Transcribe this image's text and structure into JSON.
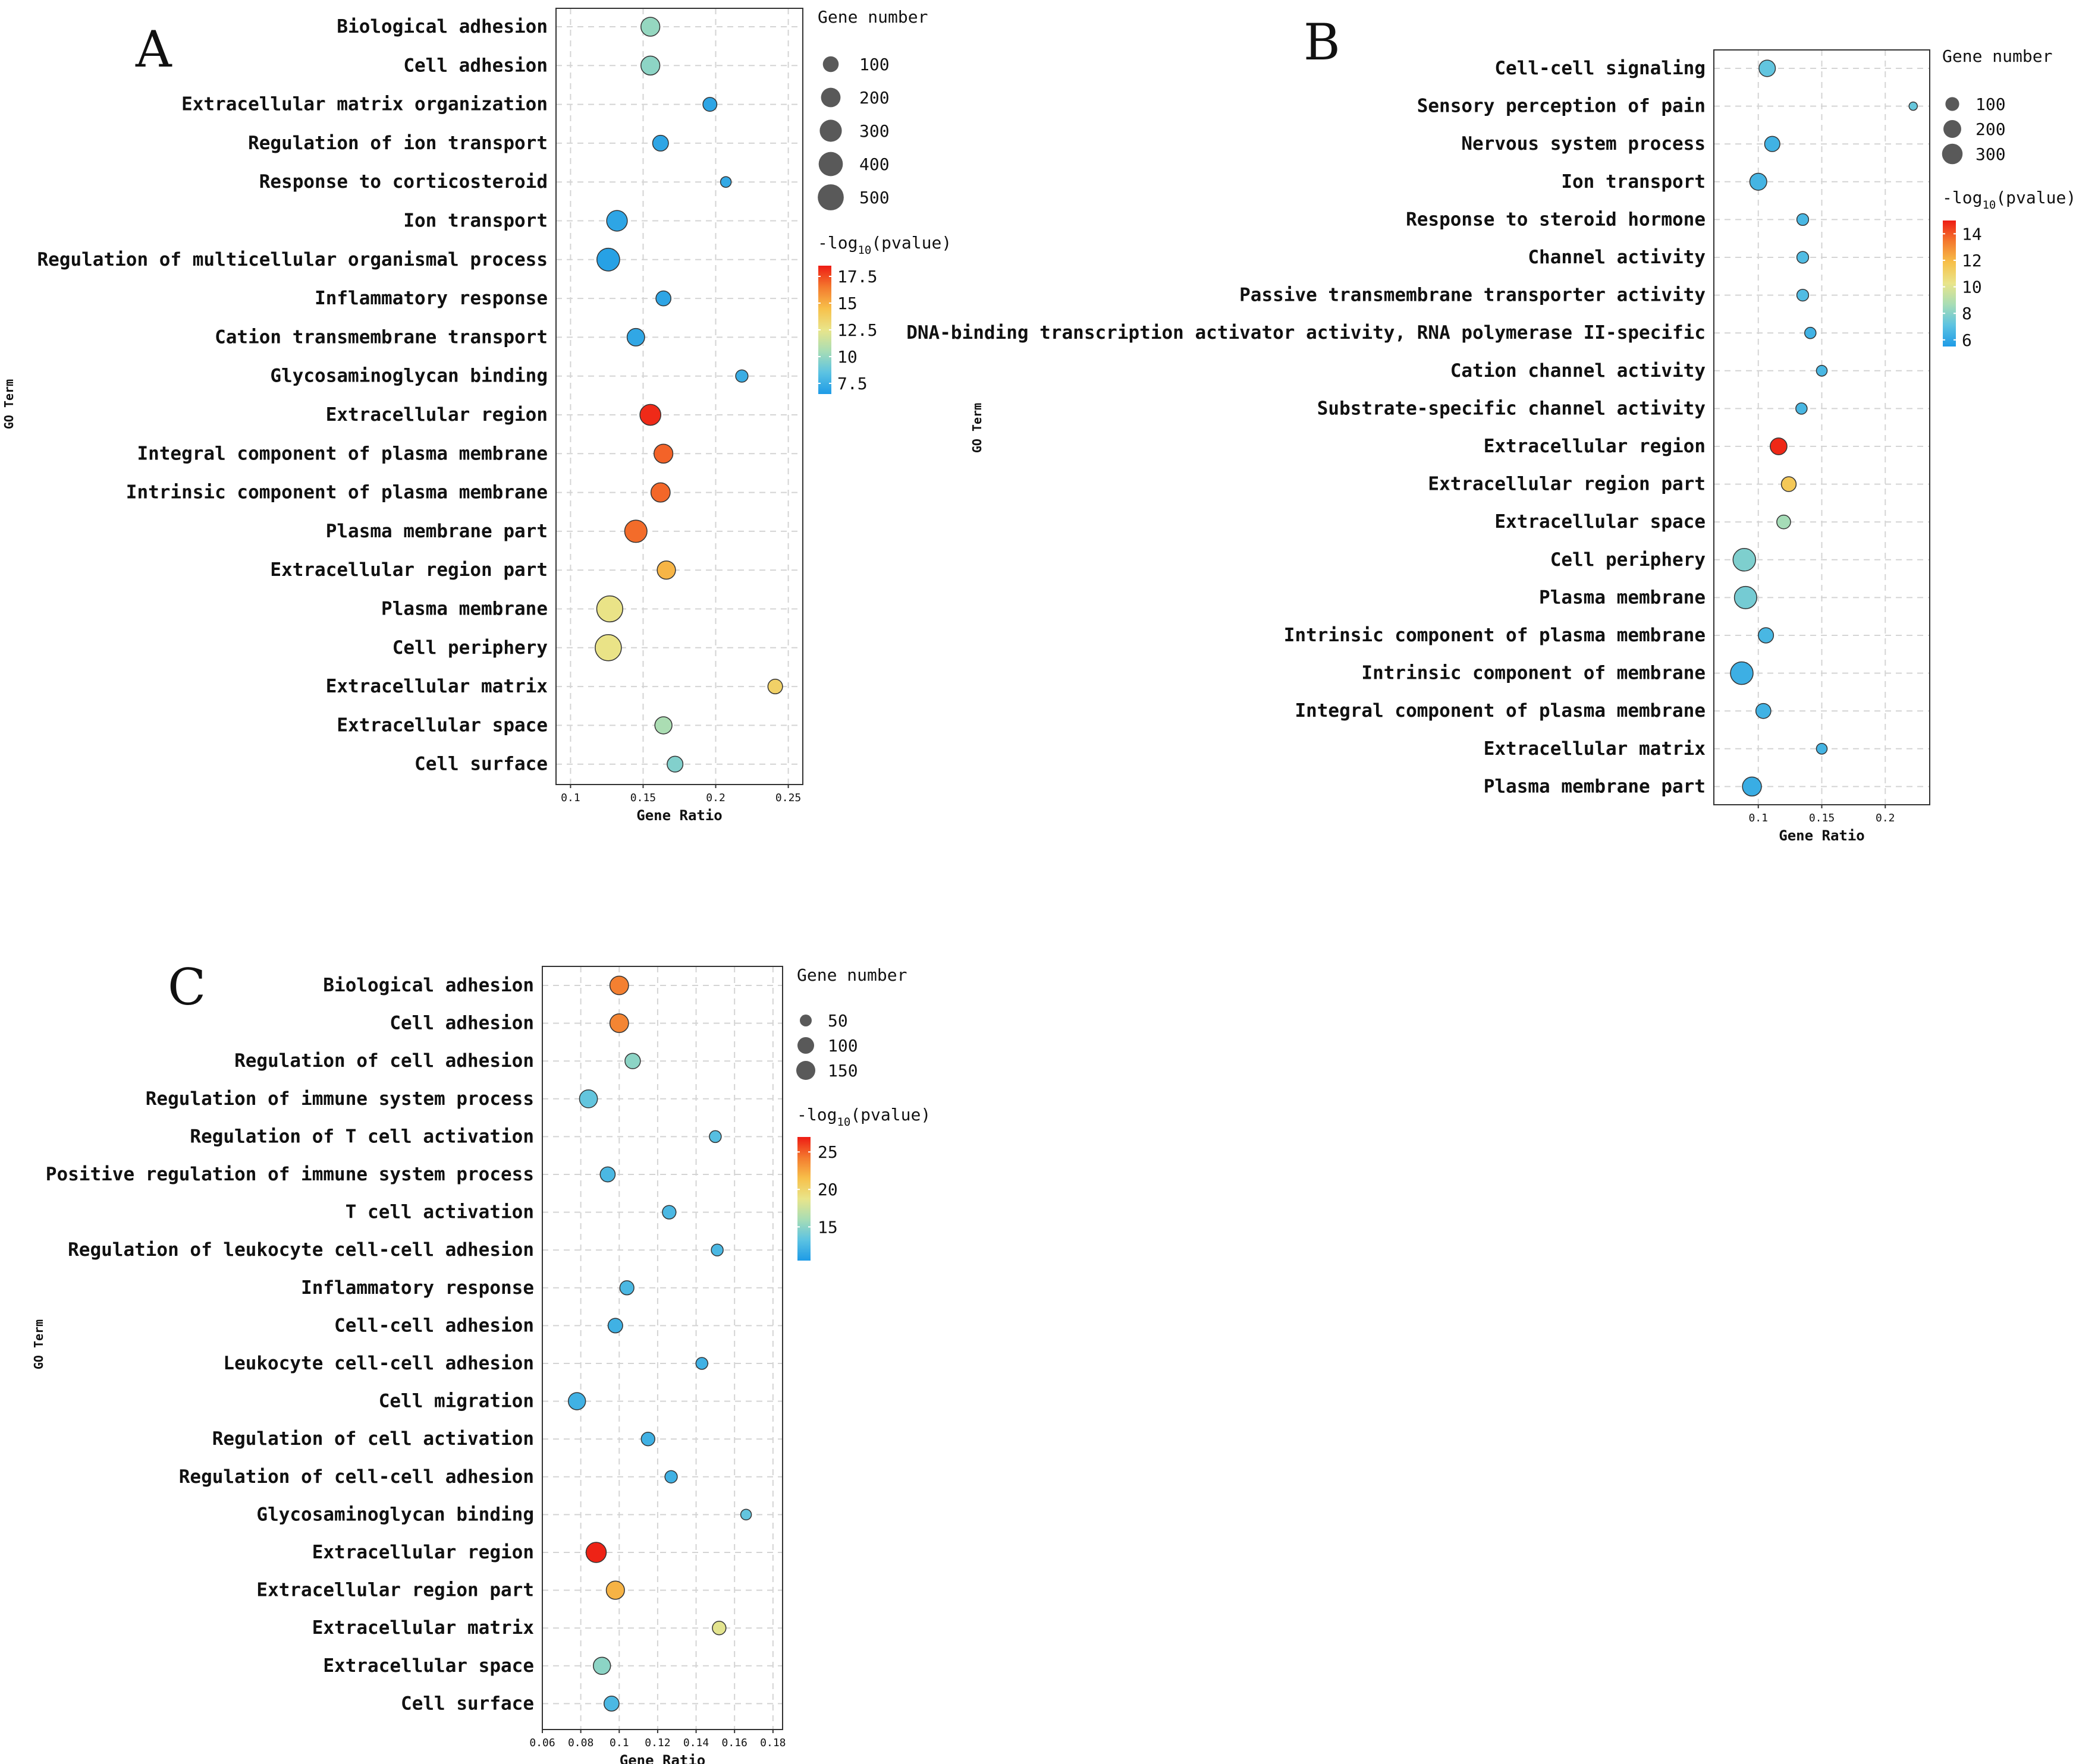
{
  "chart_data": [
    {
      "panel": "A",
      "type": "scatter",
      "xlabel": "Gene Ratio",
      "ylabel": "GO Term",
      "xlim": [
        0.09,
        0.26
      ],
      "xticks": [
        0.1,
        0.15,
        0.2,
        0.25
      ],
      "xtick_labels": [
        "0.1",
        "0.15",
        "0.2",
        "0.25"
      ],
      "grid": true,
      "size_legend": {
        "title": "Gene number",
        "values": [
          100,
          200,
          300,
          400,
          500
        ],
        "labels": [
          "100",
          "200",
          "300",
          "400",
          "500"
        ]
      },
      "color_legend": {
        "title_prefix": "-log",
        "title_sub": "10",
        "title_suffix": "(pvalue)",
        "min": 6.5,
        "max": 18.5,
        "ticks": [
          7.5,
          10,
          12.5,
          15,
          17.5
        ],
        "tick_labels": [
          "7.5",
          "10",
          "12.5",
          "15",
          "17.5"
        ]
      },
      "terms": [
        {
          "term": "Biological adhesion",
          "ratio": 0.155,
          "count": 180,
          "logp": 10.0
        },
        {
          "term": "Cell adhesion",
          "ratio": 0.155,
          "count": 180,
          "logp": 9.8
        },
        {
          "term": "Extracellular matrix organization",
          "ratio": 0.196,
          "count": 70,
          "logp": 7.0
        },
        {
          "term": "Regulation of ion transport",
          "ratio": 0.162,
          "count": 100,
          "logp": 7.0
        },
        {
          "term": "Response to corticosteroid",
          "ratio": 0.207,
          "count": 50,
          "logp": 7.2
        },
        {
          "term": "Ion transport",
          "ratio": 0.132,
          "count": 240,
          "logp": 7.0
        },
        {
          "term": "Regulation of multicellular organismal process",
          "ratio": 0.126,
          "count": 330,
          "logp": 6.8
        },
        {
          "term": "Inflammatory response",
          "ratio": 0.164,
          "count": 85,
          "logp": 7.0
        },
        {
          "term": "Cation transmembrane transport",
          "ratio": 0.145,
          "count": 140,
          "logp": 7.1
        },
        {
          "term": "Glycosaminoglycan binding",
          "ratio": 0.218,
          "count": 55,
          "logp": 7.4
        },
        {
          "term": "Extracellular region",
          "ratio": 0.155,
          "count": 250,
          "logp": 18.2
        },
        {
          "term": "Integral component of plasma membrane",
          "ratio": 0.164,
          "count": 180,
          "logp": 17.0
        },
        {
          "term": "Intrinsic component of plasma membrane",
          "ratio": 0.162,
          "count": 190,
          "logp": 16.9
        },
        {
          "term": "Plasma membrane part",
          "ratio": 0.145,
          "count": 310,
          "logp": 16.8
        },
        {
          "term": "Extracellular region part",
          "ratio": 0.166,
          "count": 160,
          "logp": 14.8
        },
        {
          "term": "Plasma membrane",
          "ratio": 0.127,
          "count": 500,
          "logp": 12.6
        },
        {
          "term": "Cell periphery",
          "ratio": 0.126,
          "count": 510,
          "logp": 12.6
        },
        {
          "term": "Extracellular matrix",
          "ratio": 0.241,
          "count": 80,
          "logp": 13.6
        },
        {
          "term": "Extracellular space",
          "ratio": 0.164,
          "count": 130,
          "logp": 10.6
        },
        {
          "term": "Cell surface",
          "ratio": 0.172,
          "count": 100,
          "logp": 9.5
        }
      ]
    },
    {
      "panel": "B",
      "type": "scatter",
      "xlabel": "Gene Ratio",
      "ylabel": "GO Term",
      "xlim": [
        0.065,
        0.235
      ],
      "xticks": [
        0.1,
        0.15,
        0.2
      ],
      "xtick_labels": [
        "0.1",
        "0.15",
        "0.2"
      ],
      "grid": true,
      "size_legend": {
        "title": "Gene number",
        "values": [
          100,
          200,
          300
        ],
        "labels": [
          "100",
          "200",
          "300"
        ]
      },
      "color_legend": {
        "title_prefix": "-log",
        "title_sub": "10",
        "title_suffix": "(pvalue)",
        "min": 5.5,
        "max": 15,
        "ticks": [
          6,
          8,
          10,
          12,
          14
        ],
        "tick_labels": [
          "6",
          "8",
          "10",
          "12",
          "14"
        ]
      },
      "terms": [
        {
          "term": "Cell-cell signaling",
          "ratio": 0.107,
          "count": 160,
          "logp": 7.2
        },
        {
          "term": "Sensory perception of pain",
          "ratio": 0.222,
          "count": 50,
          "logp": 7.3
        },
        {
          "term": "Nervous system process",
          "ratio": 0.111,
          "count": 130,
          "logp": 6.4
        },
        {
          "term": "Ion transport",
          "ratio": 0.1,
          "count": 175,
          "logp": 6.5
        },
        {
          "term": "Response to steroid hormone",
          "ratio": 0.135,
          "count": 70,
          "logp": 6.6
        },
        {
          "term": "Channel activity",
          "ratio": 0.135,
          "count": 70,
          "logp": 6.8
        },
        {
          "term": "Passive transmembrane transporter activity",
          "ratio": 0.135,
          "count": 70,
          "logp": 6.8
        },
        {
          "term": "DNA-binding transcription activator activity, RNA polymerase II-specific",
          "ratio": 0.141,
          "count": 65,
          "logp": 6.4
        },
        {
          "term": "Cation channel activity",
          "ratio": 0.15,
          "count": 60,
          "logp": 6.6
        },
        {
          "term": "Substrate-specific channel activity",
          "ratio": 0.134,
          "count": 65,
          "logp": 6.6
        },
        {
          "term": "Extracellular region",
          "ratio": 0.116,
          "count": 170,
          "logp": 14.8
        },
        {
          "term": "Extracellular region part",
          "ratio": 0.124,
          "count": 120,
          "logp": 11.5
        },
        {
          "term": "Extracellular space",
          "ratio": 0.12,
          "count": 100,
          "logp": 8.6
        },
        {
          "term": "Cell periphery",
          "ratio": 0.089,
          "count": 390,
          "logp": 7.8
        },
        {
          "term": "Plasma membrane",
          "ratio": 0.09,
          "count": 380,
          "logp": 7.6
        },
        {
          "term": "Intrinsic component of plasma membrane",
          "ratio": 0.106,
          "count": 130,
          "logp": 6.6
        },
        {
          "term": "Intrinsic component of membrane",
          "ratio": 0.087,
          "count": 390,
          "logp": 6.3
        },
        {
          "term": "Integral component of plasma membrane",
          "ratio": 0.104,
          "count": 125,
          "logp": 6.4
        },
        {
          "term": "Extracellular matrix",
          "ratio": 0.15,
          "count": 60,
          "logp": 6.5
        },
        {
          "term": "Plasma membrane part",
          "ratio": 0.095,
          "count": 240,
          "logp": 6.2
        }
      ]
    },
    {
      "panel": "C",
      "type": "scatter",
      "xlabel": "Gene Ratio",
      "ylabel": "GO Term",
      "xlim": [
        0.06,
        0.185
      ],
      "xticks": [
        0.06,
        0.08,
        0.1,
        0.12,
        0.14,
        0.16,
        0.18
      ],
      "xtick_labels": [
        "0.06",
        "0.08",
        "0.1",
        "0.12",
        "0.14",
        "0.16",
        "0.18"
      ],
      "grid": true,
      "size_legend": {
        "title": "Gene number",
        "values": [
          50,
          100,
          150
        ],
        "labels": [
          "50",
          "100",
          "150"
        ]
      },
      "color_legend": {
        "title_prefix": "-log",
        "title_sub": "10",
        "title_suffix": "(pvalue)",
        "min": 10.5,
        "max": 27,
        "ticks": [
          15,
          20,
          25
        ],
        "tick_labels": [
          "15",
          "20",
          "25"
        ]
      },
      "terms": [
        {
          "term": "Biological adhesion",
          "ratio": 0.1,
          "count": 140,
          "logp": 24.0
        },
        {
          "term": "Cell adhesion",
          "ratio": 0.1,
          "count": 140,
          "logp": 23.8
        },
        {
          "term": "Regulation of cell adhesion",
          "ratio": 0.107,
          "count": 80,
          "logp": 15.0
        },
        {
          "term": "Regulation of immune system process",
          "ratio": 0.084,
          "count": 125,
          "logp": 13.5
        },
        {
          "term": "Regulation of T cell activation",
          "ratio": 0.15,
          "count": 50,
          "logp": 13.0
        },
        {
          "term": "Positive regulation of immune system process",
          "ratio": 0.094,
          "count": 75,
          "logp": 12.5
        },
        {
          "term": "T cell activation",
          "ratio": 0.126,
          "count": 60,
          "logp": 12.5
        },
        {
          "term": "Regulation of leukocyte cell-cell adhesion",
          "ratio": 0.151,
          "count": 50,
          "logp": 12.5
        },
        {
          "term": "Inflammatory response",
          "ratio": 0.104,
          "count": 65,
          "logp": 12.5
        },
        {
          "term": "Cell-cell adhesion",
          "ratio": 0.098,
          "count": 70,
          "logp": 12.0
        },
        {
          "term": "Leukocyte cell-cell adhesion",
          "ratio": 0.143,
          "count": 50,
          "logp": 12.0
        },
        {
          "term": "Cell migration",
          "ratio": 0.078,
          "count": 110,
          "logp": 12.0
        },
        {
          "term": "Regulation of cell activation",
          "ratio": 0.115,
          "count": 60,
          "logp": 12.0
        },
        {
          "term": "Regulation of cell-cell adhesion",
          "ratio": 0.127,
          "count": 52,
          "logp": 12.0
        },
        {
          "term": "Glycosaminoglycan binding",
          "ratio": 0.166,
          "count": 48,
          "logp": 13.5
        },
        {
          "term": "Extracellular region",
          "ratio": 0.088,
          "count": 180,
          "logp": 26.8
        },
        {
          "term": "Extracellular region part",
          "ratio": 0.098,
          "count": 130,
          "logp": 22.0
        },
        {
          "term": "Extracellular matrix",
          "ratio": 0.152,
          "count": 60,
          "logp": 18.5
        },
        {
          "term": "Extracellular space",
          "ratio": 0.091,
          "count": 110,
          "logp": 15.0
        },
        {
          "term": "Cell surface",
          "ratio": 0.096,
          "count": 75,
          "logp": 12.5
        }
      ]
    }
  ],
  "colors": {
    "scale": [
      "#1E9BE6",
      "#5CC3E2",
      "#A8DDB5",
      "#E9E58A",
      "#F7C04A",
      "#F47A2E",
      "#EE1C14"
    ],
    "point_stroke": "#333333",
    "size_legend_fill": "#595959",
    "grid": "#d4d4d4"
  }
}
